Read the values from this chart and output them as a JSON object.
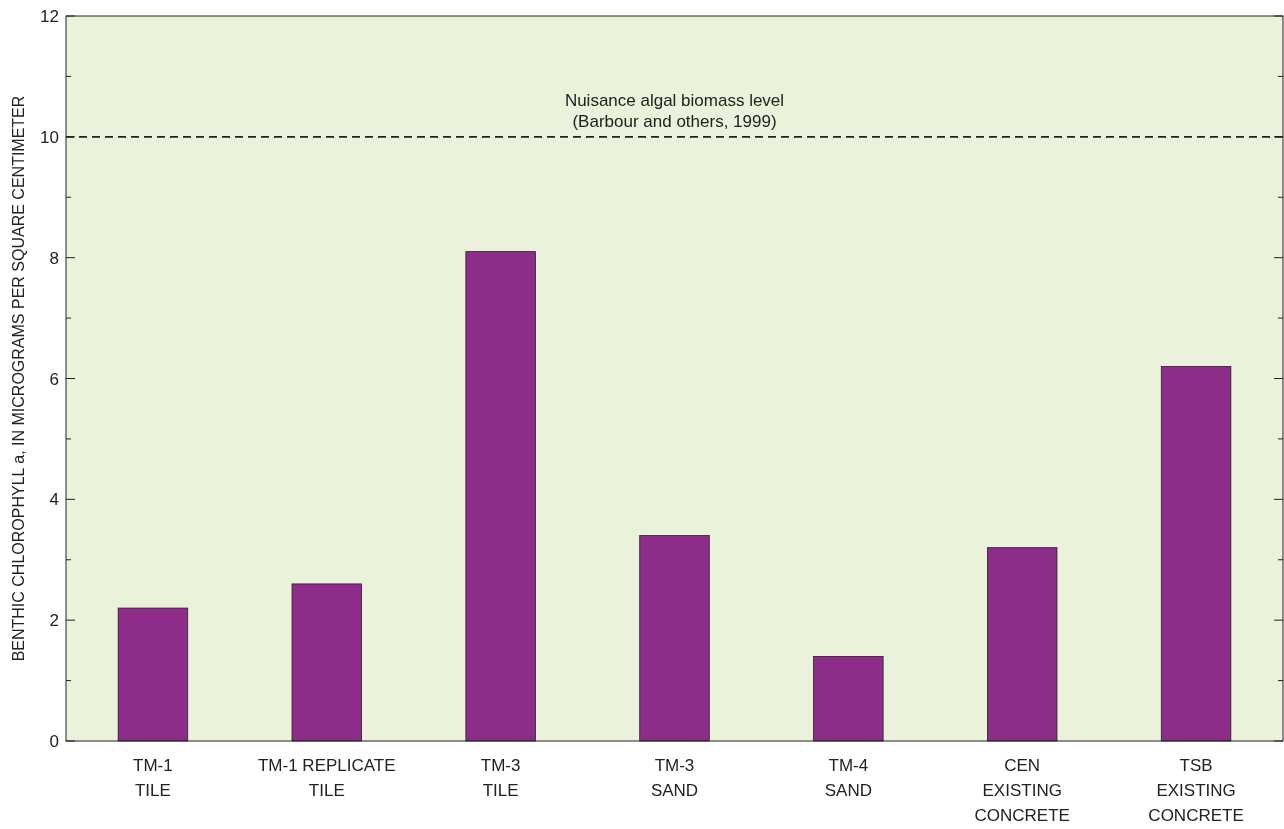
{
  "chart_data": {
    "type": "bar",
    "ylabel": "BENTHIC CHLOROPHYLL a, IN MICROGRAMS PER SQUARE CENTIMETER",
    "categories": [
      "TM-1\nTILE",
      "TM-1 REPLICATE\nTILE",
      "TM-3\nTILE",
      "TM-3\nSAND",
      "TM-4\nSAND",
      "CEN\nEXISTING\nCONCRETE",
      "TSB\nEXISTING\nCONCRETE"
    ],
    "values": [
      2.2,
      2.6,
      8.1,
      3.4,
      1.4,
      3.2,
      6.2
    ],
    "color": "#8e2c8a",
    "ylim": [
      0,
      12
    ],
    "yticks": [
      0,
      {
        "value": 1,
        "label": null
      },
      2,
      {
        "value": 3,
        "label": null
      },
      4,
      {
        "value": 5,
        "label": null
      },
      6,
      {
        "value": 7,
        "label": null
      },
      8,
      {
        "value": 9,
        "label": null
      },
      10,
      {
        "value": 11,
        "label": null
      },
      12
    ],
    "grid": false,
    "ref_lines": [
      {
        "axis": "y",
        "value": 10,
        "label": "Nuisance algal biomass level\n(Barbour and others, 1999)",
        "color": "#222222",
        "line_style": "dashed"
      }
    ]
  }
}
